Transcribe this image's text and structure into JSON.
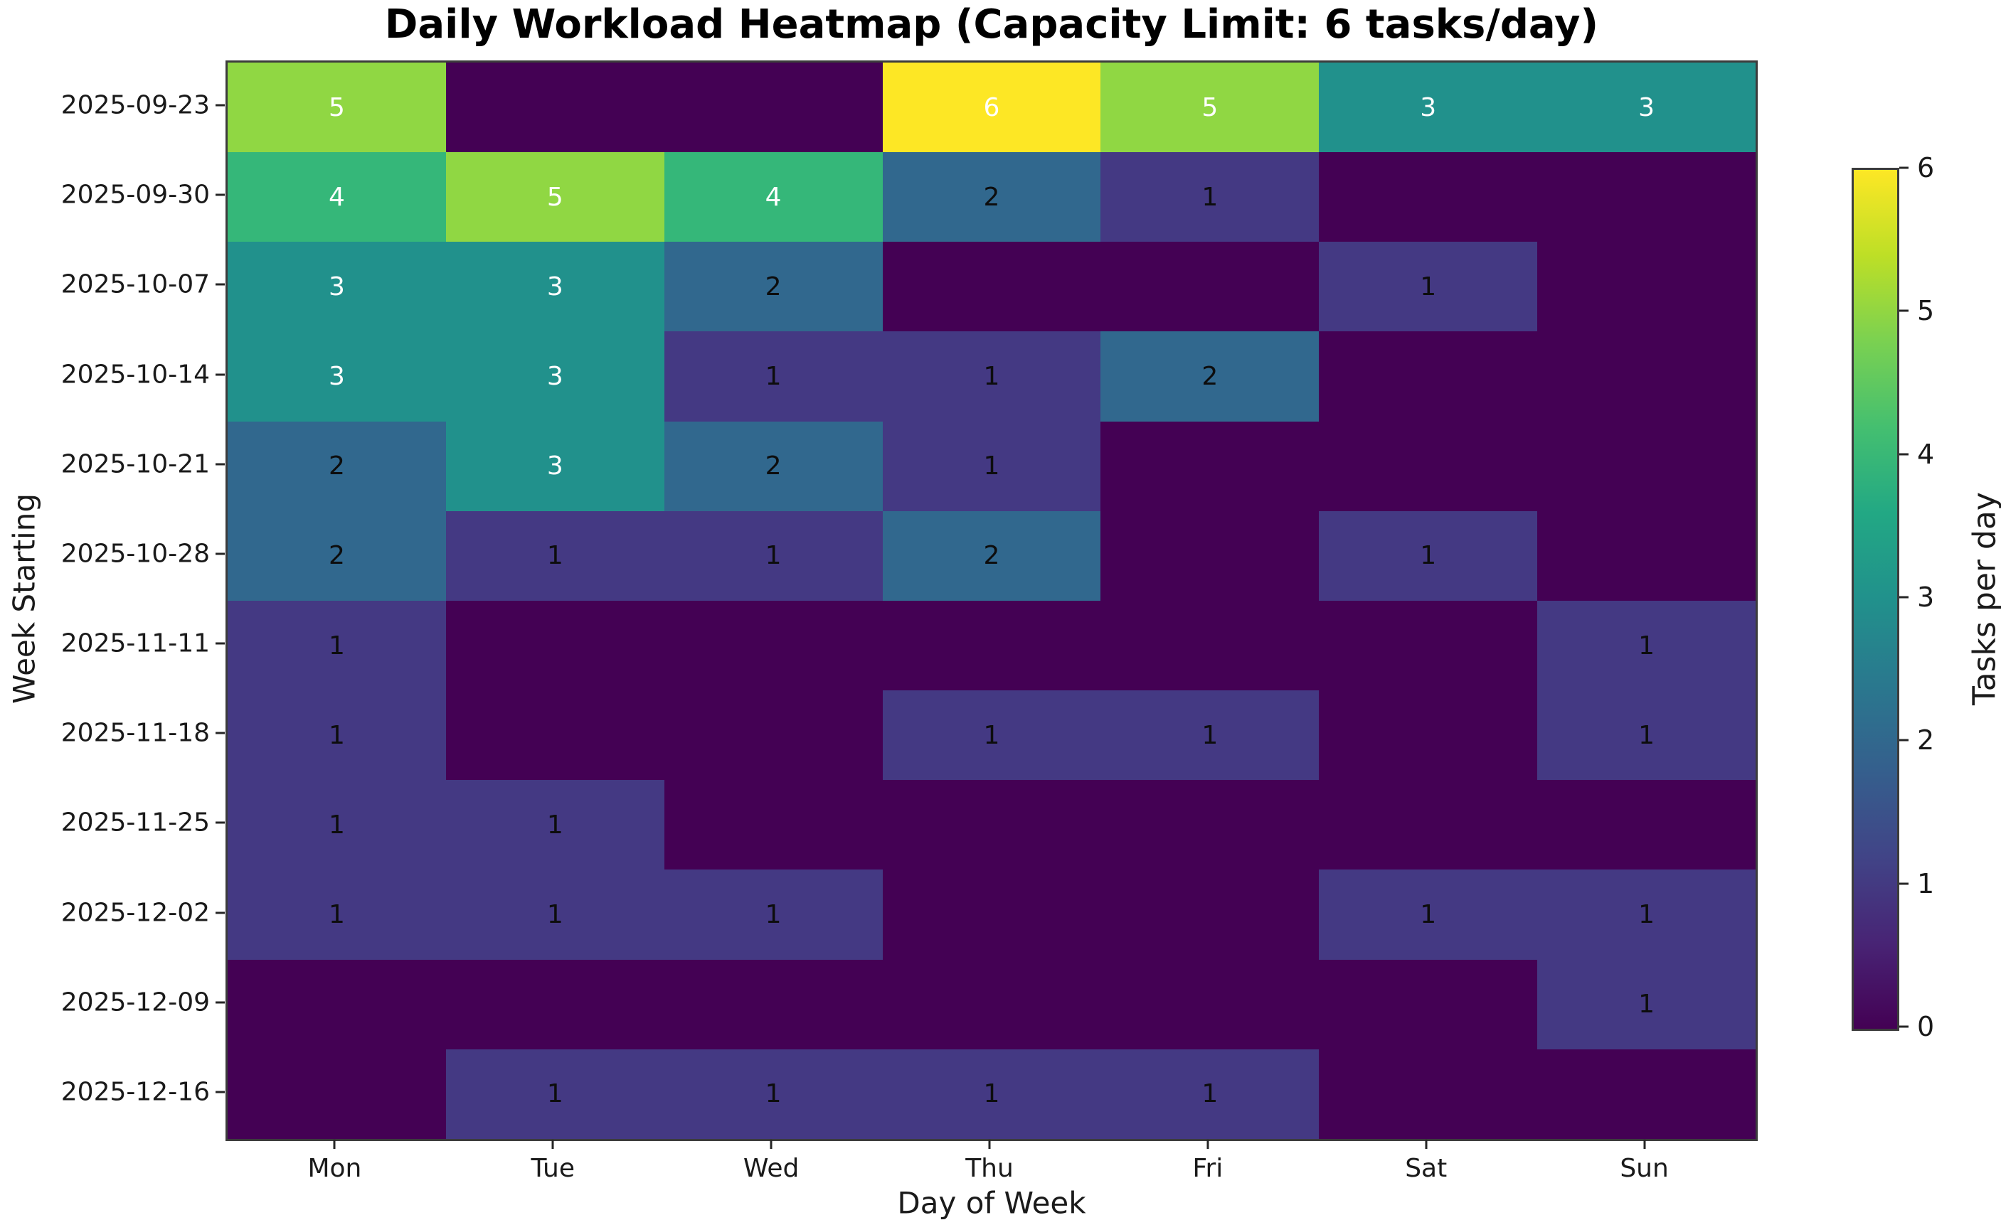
{
  "title": "Daily Workload Heatmap (Capacity Limit: 6 tasks/day)",
  "chart_data": {
    "type": "heatmap",
    "title": "Daily Workload Heatmap (Capacity Limit: 6 tasks/day)",
    "xlabel": "Day of Week",
    "ylabel": "Week Starting",
    "columns": [
      "Mon",
      "Tue",
      "Wed",
      "Thu",
      "Fri",
      "Sat",
      "Sun"
    ],
    "rows": [
      "2025-09-23",
      "2025-09-30",
      "2025-10-07",
      "2025-10-14",
      "2025-10-21",
      "2025-10-28",
      "2025-11-11",
      "2025-11-18",
      "2025-11-25",
      "2025-12-02",
      "2025-12-09",
      "2025-12-16"
    ],
    "values": [
      [
        5,
        0,
        0,
        6,
        5,
        3,
        3
      ],
      [
        4,
        5,
        4,
        2,
        1,
        0,
        0
      ],
      [
        3,
        3,
        2,
        0,
        0,
        1,
        0
      ],
      [
        3,
        3,
        1,
        1,
        2,
        0,
        0
      ],
      [
        2,
        3,
        2,
        1,
        0,
        0,
        0
      ],
      [
        2,
        1,
        1,
        2,
        0,
        1,
        0
      ],
      [
        1,
        0,
        0,
        0,
        0,
        0,
        1
      ],
      [
        1,
        0,
        0,
        1,
        1,
        0,
        1
      ],
      [
        1,
        1,
        0,
        0,
        0,
        0,
        0
      ],
      [
        1,
        1,
        1,
        0,
        0,
        1,
        1
      ],
      [
        0,
        0,
        0,
        0,
        0,
        0,
        1
      ],
      [
        0,
        1,
        1,
        1,
        1,
        0,
        0
      ]
    ],
    "annotation_rule": "zeros hidden; values >= 3 white text, values < 3 black text",
    "colormap": "viridis",
    "value_colors": {
      "0": "#440154",
      "1": "#443983",
      "2": "#31688e",
      "3": "#21918c",
      "4": "#35b779",
      "5": "#90d743",
      "6": "#fde725"
    },
    "grid": false,
    "colorbar": {
      "label": "Tasks per day",
      "ticks": [
        0,
        1,
        2,
        3,
        4,
        5,
        6
      ],
      "min": 0,
      "max": 6
    }
  }
}
